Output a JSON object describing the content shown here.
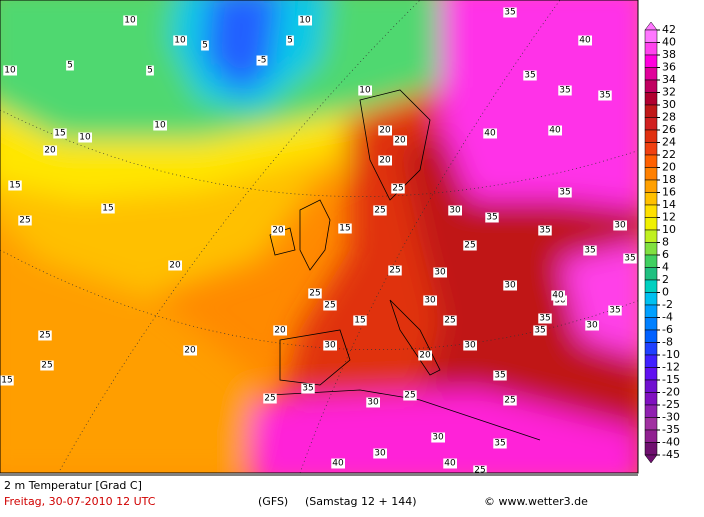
{
  "map": {
    "labels": [
      "10",
      "10",
      "5",
      "5",
      "10",
      "5",
      "-5",
      "5",
      "10",
      "10",
      "10",
      "10",
      "15",
      "20",
      "15",
      "15",
      "15",
      "20",
      "20",
      "25",
      "25",
      "20",
      "25",
      "15",
      "25",
      "25",
      "30",
      "20",
      "25",
      "30",
      "35",
      "40",
      "40",
      "35",
      "35",
      "30",
      "35",
      "40",
      "35",
      "30",
      "25",
      "30",
      "35",
      "30",
      "35",
      "35",
      "25",
      "20",
      "15",
      "20",
      "20",
      "25",
      "25",
      "30",
      "35",
      "35",
      "35",
      "30",
      "25",
      "40",
      "35",
      "30",
      "25",
      "35",
      "40",
      "30",
      "30",
      "35",
      "25",
      "40",
      "20",
      "30",
      "25",
      "35"
    ],
    "colorbar": {
      "levels": [
        {
          "value": 42,
          "label": "42",
          "color": "#ff77ff"
        },
        {
          "value": 40,
          "label": "40",
          "color": "#ff44ee"
        },
        {
          "value": 38,
          "label": "38",
          "color": "#ff00dd"
        },
        {
          "value": 36,
          "label": "36",
          "color": "#e0009a"
        },
        {
          "value": 34,
          "label": "34",
          "color": "#c00060"
        },
        {
          "value": 32,
          "label": "32",
          "color": "#b00030"
        },
        {
          "value": 30,
          "label": "30",
          "color": "#c01818"
        },
        {
          "value": 28,
          "label": "28",
          "color": "#d02020"
        },
        {
          "value": 26,
          "label": "26",
          "color": "#e03010"
        },
        {
          "value": 24,
          "label": "24",
          "color": "#f04010"
        },
        {
          "value": 22,
          "label": "22",
          "color": "#ff6000"
        },
        {
          "value": 20,
          "label": "20",
          "color": "#ff8000"
        },
        {
          "value": 18,
          "label": "18",
          "color": "#ffa000"
        },
        {
          "value": 16,
          "label": "16",
          "color": "#ffc000"
        },
        {
          "value": 14,
          "label": "14",
          "color": "#ffe000"
        },
        {
          "value": 12,
          "label": "12",
          "color": "#f0f000"
        },
        {
          "value": 10,
          "label": "10",
          "color": "#c0f020"
        },
        {
          "value": 8,
          "label": "8",
          "color": "#80e040"
        },
        {
          "value": 6,
          "label": "6",
          "color": "#40d060"
        },
        {
          "value": 4,
          "label": "4",
          "color": "#20c080"
        },
        {
          "value": 2,
          "label": "2",
          "color": "#00d0c0"
        },
        {
          "value": 0,
          "label": "0",
          "color": "#00c0f0"
        },
        {
          "value": -2,
          "label": "-2",
          "color": "#00a0ff"
        },
        {
          "value": -4,
          "label": "-4",
          "color": "#0080ff"
        },
        {
          "value": -6,
          "label": "-6",
          "color": "#0060ff"
        },
        {
          "value": -8,
          "label": "-8",
          "color": "#2040ff"
        },
        {
          "value": -10,
          "label": "-10",
          "color": "#4020ff"
        },
        {
          "value": -12,
          "label": "-12",
          "color": "#6010f0"
        },
        {
          "value": -15,
          "label": "-15",
          "color": "#7010d0"
        },
        {
          "value": -20,
          "label": "-20",
          "color": "#8010c0"
        },
        {
          "value": -25,
          "label": "-25",
          "color": "#9020b0"
        },
        {
          "value": -30,
          "label": "-30",
          "color": "#a030a0"
        },
        {
          "value": -35,
          "label": "-35",
          "color": "#902090"
        },
        {
          "value": -40,
          "label": "-40",
          "color": "#701070"
        },
        {
          "value": -45,
          "label": "-45",
          "color": "#701070"
        }
      ]
    }
  },
  "footer": {
    "title": "2 m Temperatur [Grad C]",
    "date": "Freitag, 30-07-2010  12 UTC",
    "model": "(GFS)",
    "run": "(Samstag 12 + 144)",
    "credit": "© www.wetter3.de"
  }
}
